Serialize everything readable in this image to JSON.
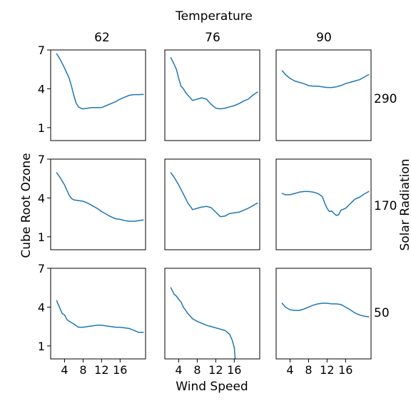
{
  "chart_data": {
    "type": "line",
    "suptitle_top": "Temperature",
    "xlabel": "Wind Speed",
    "ylabel": "Cube Root Ozone",
    "row_label": "Solar Radiation",
    "col_values": [
      "62",
      "76",
      "90"
    ],
    "row_values": [
      "290",
      "170",
      "50"
    ],
    "xlim": [
      1,
      21.5
    ],
    "ylim": [
      0,
      7
    ],
    "xticks": [
      4,
      8,
      12,
      16
    ],
    "xtick_labels": [
      "4",
      "8",
      "12",
      "16"
    ],
    "yticks": [
      1,
      4,
      7
    ],
    "ytick_labels": [
      "1",
      "4",
      "7"
    ],
    "line_color": "#1f77b4",
    "grid": false,
    "panels": [
      {
        "row": "290",
        "col": "62",
        "x": [
          2.3,
          3,
          4,
          5,
          5.5,
          6,
          6.5,
          7,
          7.5,
          8,
          9,
          10,
          11,
          12,
          13,
          14,
          15,
          16,
          17,
          18,
          19,
          20,
          21
        ],
        "y": [
          6.7,
          6.3,
          5.6,
          4.8,
          4.2,
          3.5,
          2.9,
          2.6,
          2.5,
          2.45,
          2.5,
          2.55,
          2.55,
          2.55,
          2.7,
          2.85,
          3,
          3.2,
          3.35,
          3.5,
          3.55,
          3.55,
          3.57
        ]
      },
      {
        "row": "290",
        "col": "76",
        "x": [
          2.3,
          3,
          3.5,
          4,
          4.5,
          5,
          5.5,
          6,
          7,
          8,
          9,
          10,
          10.5,
          11,
          12,
          13,
          14,
          15,
          16,
          17,
          18,
          19,
          20,
          21
        ],
        "y": [
          6.4,
          5.9,
          5.5,
          4.8,
          4.2,
          4,
          3.7,
          3.5,
          3.1,
          3.2,
          3.3,
          3.2,
          3,
          2.8,
          2.5,
          2.45,
          2.5,
          2.6,
          2.7,
          2.85,
          3.05,
          3.2,
          3.5,
          3.75
        ]
      },
      {
        "row": "290",
        "col": "90",
        "x": [
          2.3,
          3,
          4,
          5,
          6,
          7,
          8,
          9,
          10,
          11,
          12,
          13,
          14,
          15,
          16,
          17,
          18,
          19,
          20,
          21
        ],
        "y": [
          5.4,
          5.1,
          4.8,
          4.6,
          4.5,
          4.4,
          4.25,
          4.2,
          4.2,
          4.15,
          4.1,
          4.1,
          4.15,
          4.25,
          4.4,
          4.5,
          4.6,
          4.7,
          4.9,
          5.1
        ]
      },
      {
        "row": "170",
        "col": "62",
        "x": [
          2.3,
          3,
          4,
          4.5,
          5,
          5.5,
          6,
          7,
          8,
          9,
          10,
          11,
          12,
          13,
          14,
          15,
          16,
          17,
          18,
          19,
          20,
          21
        ],
        "y": [
          5.95,
          5.6,
          5,
          4.6,
          4.2,
          3.95,
          3.85,
          3.8,
          3.75,
          3.6,
          3.4,
          3.2,
          2.95,
          2.75,
          2.55,
          2.4,
          2.35,
          2.25,
          2.2,
          2.2,
          2.25,
          2.3
        ]
      },
      {
        "row": "170",
        "col": "76",
        "x": [
          2.3,
          3,
          4,
          5,
          6,
          7,
          8,
          9,
          10,
          11,
          12,
          13,
          14,
          15,
          16,
          17,
          18,
          19,
          20,
          21
        ],
        "y": [
          5.95,
          5.6,
          5,
          4.3,
          3.6,
          3.1,
          3.2,
          3.3,
          3.35,
          3.25,
          2.9,
          2.55,
          2.6,
          2.8,
          2.85,
          2.9,
          3.05,
          3.2,
          3.4,
          3.6
        ]
      },
      {
        "row": "170",
        "col": "90",
        "x": [
          2.3,
          3,
          4,
          5,
          6,
          7,
          8,
          9,
          10,
          11,
          11.5,
          12,
          12.5,
          13,
          13.5,
          14,
          14.5,
          15,
          16,
          17,
          18,
          19,
          20,
          21
        ],
        "y": [
          4.35,
          4.25,
          4.25,
          4.35,
          4.45,
          4.5,
          4.5,
          4.45,
          4.35,
          4.1,
          3.6,
          3.2,
          2.95,
          3,
          2.8,
          2.65,
          2.7,
          3.05,
          3.2,
          3.55,
          3.9,
          4.05,
          4.3,
          4.5
        ]
      },
      {
        "row": "50",
        "col": "62",
        "x": [
          2.3,
          3,
          3.5,
          4,
          4.5,
          5,
          6,
          7,
          8,
          9,
          10,
          11,
          12,
          13,
          14,
          15,
          16,
          17,
          18,
          19,
          20,
          21
        ],
        "y": [
          4.5,
          3.9,
          3.5,
          3.4,
          3.05,
          2.9,
          2.7,
          2.45,
          2.45,
          2.5,
          2.55,
          2.6,
          2.6,
          2.55,
          2.5,
          2.45,
          2.45,
          2.4,
          2.35,
          2.2,
          2.05,
          2.05
        ]
      },
      {
        "row": "50",
        "col": "76",
        "x": [
          2.3,
          3,
          3.5,
          4,
          4.5,
          5,
          6,
          7,
          8,
          9,
          10,
          11,
          12,
          13,
          14,
          15,
          15.5,
          16,
          16.2
        ],
        "y": [
          5.5,
          5,
          4.85,
          4.6,
          4.4,
          4,
          3.5,
          3.1,
          2.9,
          2.75,
          2.6,
          2.5,
          2.4,
          2.3,
          2.2,
          1.9,
          1.5,
          0.9,
          0
        ]
      },
      {
        "row": "50",
        "col": "90",
        "x": [
          2.3,
          3,
          4,
          5,
          6,
          7,
          8,
          9,
          10,
          11,
          12,
          13,
          14,
          15,
          16,
          17,
          18,
          19,
          20,
          21
        ],
        "y": [
          4.3,
          4,
          3.8,
          3.75,
          3.75,
          3.85,
          4,
          4.15,
          4.25,
          4.3,
          4.3,
          4.25,
          4.25,
          4.2,
          4,
          3.8,
          3.55,
          3.4,
          3.3,
          3.25
        ]
      }
    ]
  }
}
